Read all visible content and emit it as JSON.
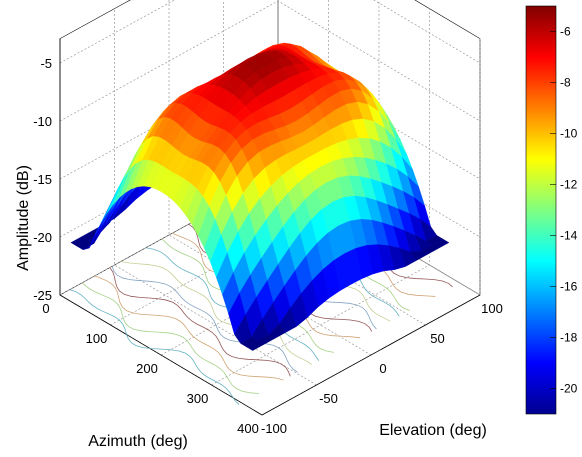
{
  "chart_data": {
    "type": "surface3d",
    "title": "",
    "xlabel": "Azimuth (deg)",
    "ylabel": "Elevation (deg)",
    "zlabel": "Amplitude (dB)",
    "x_ticks": [
      "0",
      "100",
      "200",
      "300",
      "400"
    ],
    "y_ticks": [
      "-100",
      "-50",
      "0",
      "50",
      "100"
    ],
    "z_ticks": [
      "-5",
      "-10",
      "-15",
      "-20",
      "-25"
    ],
    "xlim": [
      0,
      400
    ],
    "ylim": [
      -100,
      100
    ],
    "zlim": [
      -25,
      -5
    ],
    "grid": true,
    "colorbar": {
      "ticks": [
        "-6",
        "-8",
        "-10",
        "-12",
        "-14",
        "-16",
        "-18",
        "-20"
      ],
      "range": [
        -21,
        -5
      ],
      "colormap": "jet"
    },
    "surface": {
      "azimuth_range": [
        0,
        360
      ],
      "elevation_range": [
        -90,
        90
      ],
      "peak_db": -6,
      "edge_db": -20,
      "contours_projected_on_floor": true
    },
    "colors": {
      "high": "#8b0000",
      "mid": "#ffff00",
      "low": "#00008b"
    }
  }
}
